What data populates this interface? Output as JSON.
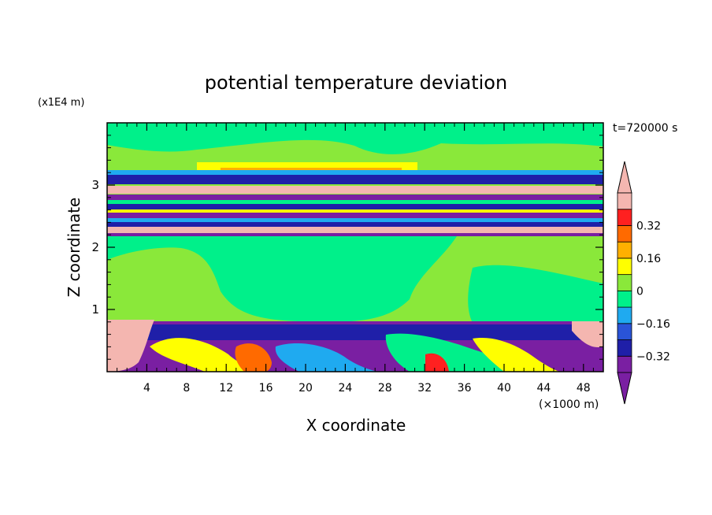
{
  "chart_data": {
    "type": "heatmap",
    "title": "potential temperature deviation",
    "xlabel": "X coordinate",
    "ylabel": "Z coordinate",
    "x_unit": "(×1000 m)",
    "y_unit": "(x1E4 m)",
    "time_label": "t=720000 s",
    "xlim": [
      0,
      50
    ],
    "ylim": [
      0,
      4
    ],
    "x_ticks": [
      4,
      8,
      12,
      16,
      20,
      24,
      28,
      32,
      36,
      40,
      44,
      48
    ],
    "y_ticks": [
      1,
      2,
      3
    ],
    "colorbar": {
      "levels": [
        -0.4,
        -0.32,
        -0.24,
        -0.16,
        -0.08,
        0,
        0.08,
        0.16,
        0.24,
        0.32,
        0.4
      ],
      "colors": [
        "#7a1fa2",
        "#1f1fa8",
        "#2a54d8",
        "#1faaf0",
        "#00f08a",
        "#8ae83a",
        "#ffff00",
        "#ffb000",
        "#ff6a00",
        "#ff2020",
        "#f4b6b0"
      ],
      "labels": [
        {
          "value": -0.32,
          "text": "−0.32"
        },
        {
          "value": -0.16,
          "text": "−0.16"
        },
        {
          "value": 0,
          "text": "0"
        },
        {
          "value": 0.16,
          "text": "0.16"
        },
        {
          "value": 0.32,
          "text": "0.32"
        }
      ],
      "extend": "both"
    }
  }
}
